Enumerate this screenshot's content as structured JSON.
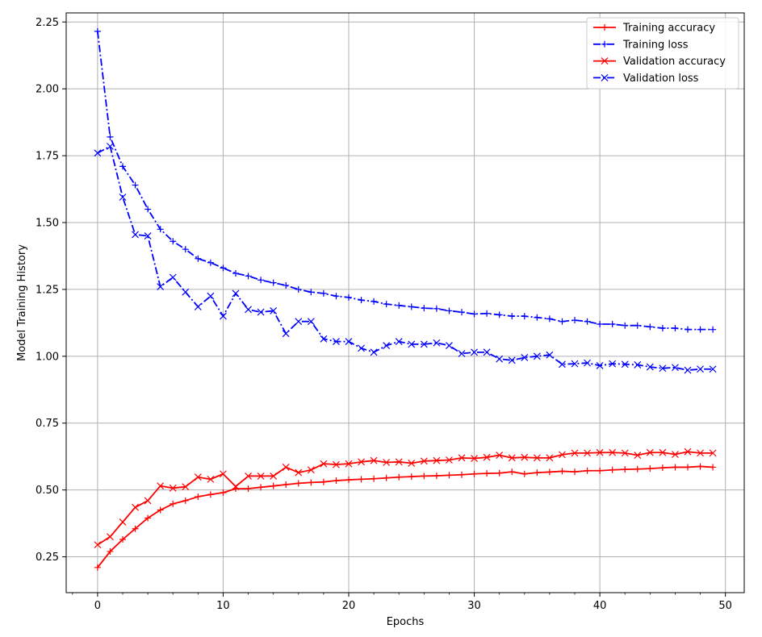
{
  "chart_data": {
    "type": "line",
    "title": "",
    "xlabel": "Epochs",
    "ylabel": "Model Training History",
    "xlim": [
      -2.5,
      51.5
    ],
    "ylim": [
      0.116,
      2.284
    ],
    "xticks": [
      0,
      10,
      20,
      30,
      40,
      50
    ],
    "xtick_labels": [
      "0",
      "10",
      "20",
      "30",
      "40",
      "50"
    ],
    "yticks": [
      0.25,
      0.5,
      0.75,
      1.0,
      1.25,
      1.5,
      1.75,
      2.0,
      2.25
    ],
    "ytick_labels": [
      "0.25",
      "0.50",
      "0.75",
      "1.00",
      "1.25",
      "1.50",
      "1.75",
      "2.00",
      "2.25"
    ],
    "grid": true,
    "legend_position": "top-right",
    "x": [
      0,
      1,
      2,
      3,
      4,
      5,
      6,
      7,
      8,
      9,
      10,
      11,
      12,
      13,
      14,
      15,
      16,
      17,
      18,
      19,
      20,
      21,
      22,
      23,
      24,
      25,
      26,
      27,
      28,
      29,
      30,
      31,
      32,
      33,
      34,
      35,
      36,
      37,
      38,
      39,
      40,
      41,
      42,
      43,
      44,
      45,
      46,
      47,
      48,
      49
    ],
    "series": [
      {
        "name": "Training accuracy",
        "color": "#ff0000",
        "linestyle": "solid",
        "marker": "plus",
        "values": [
          0.21,
          0.27,
          0.315,
          0.355,
          0.395,
          0.425,
          0.448,
          0.46,
          0.475,
          0.483,
          0.49,
          0.505,
          0.505,
          0.51,
          0.515,
          0.52,
          0.525,
          0.528,
          0.53,
          0.535,
          0.538,
          0.54,
          0.542,
          0.545,
          0.548,
          0.55,
          0.552,
          0.553,
          0.555,
          0.557,
          0.56,
          0.562,
          0.563,
          0.568,
          0.56,
          0.565,
          0.567,
          0.57,
          0.568,
          0.572,
          0.572,
          0.575,
          0.577,
          0.578,
          0.58,
          0.583,
          0.585,
          0.585,
          0.588,
          0.585
        ]
      },
      {
        "name": "Training loss",
        "color": "#0000ff",
        "linestyle": "dashdot",
        "marker": "plus",
        "values": [
          2.215,
          1.82,
          1.71,
          1.64,
          1.55,
          1.475,
          1.43,
          1.4,
          1.365,
          1.35,
          1.33,
          1.31,
          1.3,
          1.285,
          1.275,
          1.265,
          1.25,
          1.24,
          1.235,
          1.225,
          1.22,
          1.21,
          1.205,
          1.195,
          1.19,
          1.185,
          1.18,
          1.178,
          1.17,
          1.165,
          1.158,
          1.16,
          1.155,
          1.15,
          1.15,
          1.145,
          1.14,
          1.13,
          1.135,
          1.13,
          1.12,
          1.12,
          1.115,
          1.115,
          1.11,
          1.105,
          1.105,
          1.1,
          1.1,
          1.1
        ]
      },
      {
        "name": "Validation accuracy",
        "color": "#ff0000",
        "linestyle": "solid",
        "marker": "x",
        "values": [
          0.295,
          0.325,
          0.38,
          0.435,
          0.46,
          0.515,
          0.507,
          0.512,
          0.548,
          0.54,
          0.56,
          0.513,
          0.552,
          0.552,
          0.552,
          0.585,
          0.565,
          0.575,
          0.598,
          0.595,
          0.598,
          0.605,
          0.61,
          0.603,
          0.605,
          0.6,
          0.608,
          0.61,
          0.612,
          0.62,
          0.618,
          0.622,
          0.63,
          0.62,
          0.622,
          0.62,
          0.62,
          0.632,
          0.638,
          0.638,
          0.64,
          0.64,
          0.638,
          0.63,
          0.64,
          0.64,
          0.633,
          0.643,
          0.638,
          0.638
        ]
      },
      {
        "name": "Validation loss",
        "color": "#0000ff",
        "linestyle": "dashdot",
        "marker": "x",
        "values": [
          1.76,
          1.785,
          1.595,
          1.455,
          1.45,
          1.26,
          1.295,
          1.24,
          1.185,
          1.225,
          1.15,
          1.235,
          1.175,
          1.165,
          1.17,
          1.085,
          1.13,
          1.13,
          1.065,
          1.055,
          1.055,
          1.03,
          1.015,
          1.04,
          1.055,
          1.045,
          1.045,
          1.05,
          1.04,
          1.01,
          1.015,
          1.015,
          0.99,
          0.985,
          0.995,
          1.0,
          1.005,
          0.97,
          0.972,
          0.975,
          0.965,
          0.972,
          0.97,
          0.968,
          0.96,
          0.955,
          0.958,
          0.948,
          0.952,
          0.952
        ]
      }
    ]
  }
}
